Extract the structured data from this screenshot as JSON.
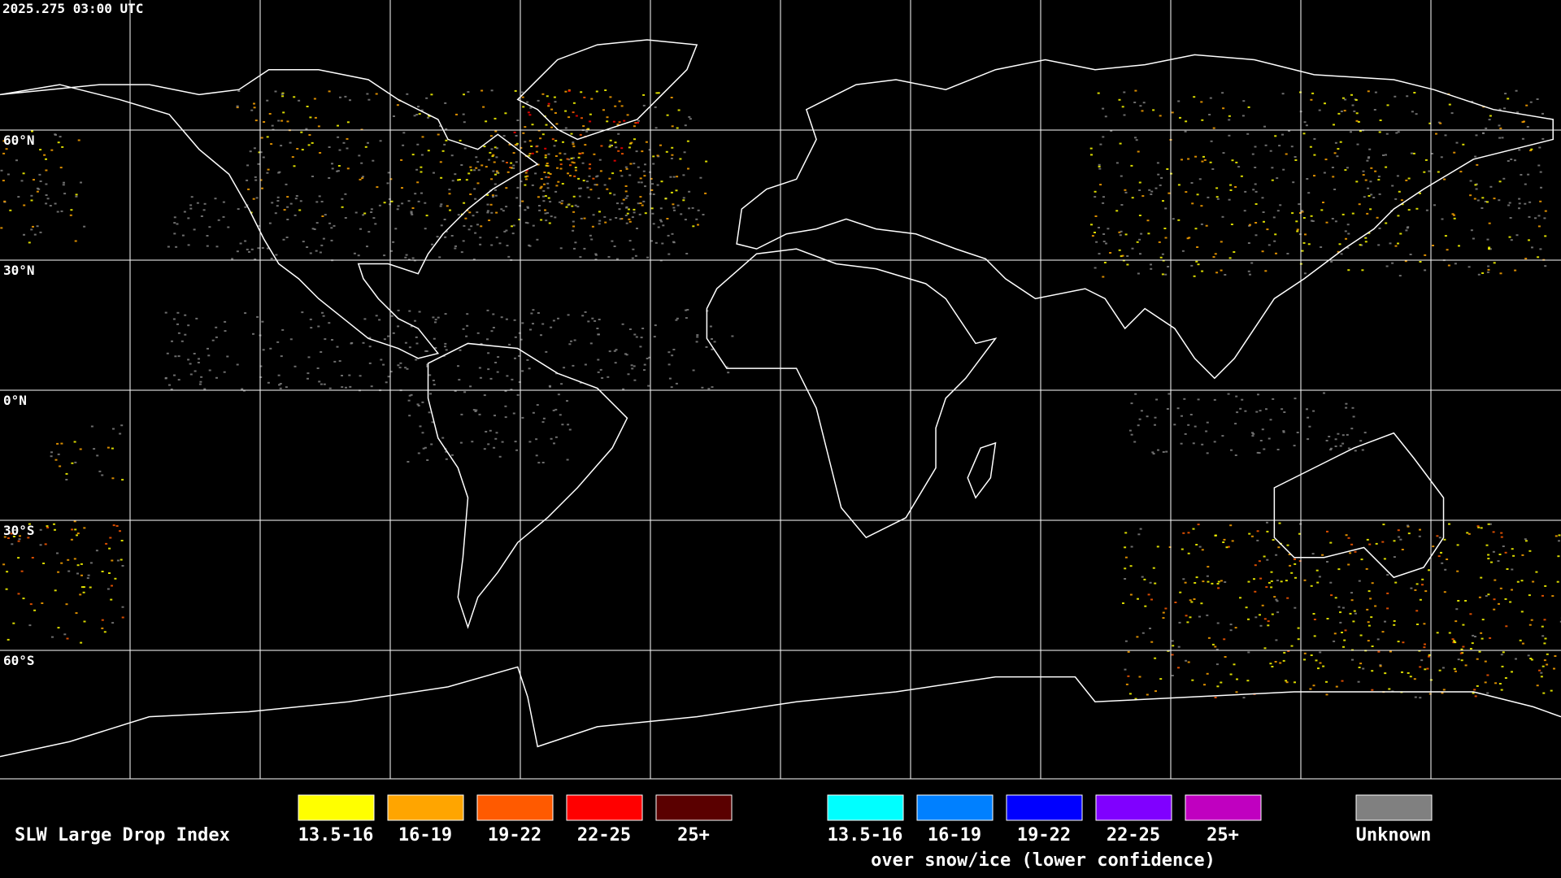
{
  "header": {
    "timestamp": "2025.275 03:00 UTC"
  },
  "map": {
    "latitude_labels": [
      "60°N",
      "30°N",
      "0°N",
      "30°S",
      "60°S"
    ]
  },
  "legend": {
    "title": "SLW Large Drop Index",
    "main_items": [
      {
        "label": "13.5-16",
        "color": "#ffff00"
      },
      {
        "label": "16-19",
        "color": "#ffa500"
      },
      {
        "label": "19-22",
        "color": "#ff5a00"
      },
      {
        "label": "22-25",
        "color": "#ff0000"
      },
      {
        "label": "25+",
        "color": "#5a0000"
      }
    ],
    "snow_items": [
      {
        "label": "13.5-16",
        "color": "#00ffff"
      },
      {
        "label": "16-19",
        "color": "#0080ff"
      },
      {
        "label": "19-22",
        "color": "#0000ff"
      },
      {
        "label": "22-25",
        "color": "#8000ff"
      },
      {
        "label": "25+",
        "color": "#c000c0"
      }
    ],
    "snow_caption": "over snow/ice (lower confidence)",
    "unknown": {
      "label": "Unknown",
      "color": "#808080"
    }
  }
}
